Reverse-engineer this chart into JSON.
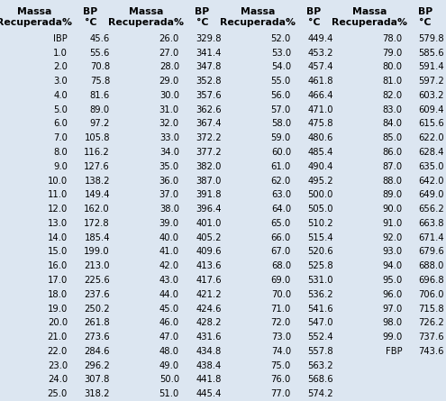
{
  "background_color": "#dce6f1",
  "rows": [
    [
      "IBP",
      "45.6"
    ],
    [
      "1.0",
      "55.6"
    ],
    [
      "2.0",
      "70.8"
    ],
    [
      "3.0",
      "75.8"
    ],
    [
      "4.0",
      "81.6"
    ],
    [
      "5.0",
      "89.0"
    ],
    [
      "6.0",
      "97.2"
    ],
    [
      "7.0",
      "105.8"
    ],
    [
      "8.0",
      "116.2"
    ],
    [
      "9.0",
      "127.6"
    ],
    [
      "10.0",
      "138.2"
    ],
    [
      "11.0",
      "149.4"
    ],
    [
      "12.0",
      "162.0"
    ],
    [
      "13.0",
      "172.8"
    ],
    [
      "14.0",
      "185.4"
    ],
    [
      "15.0",
      "199.0"
    ],
    [
      "16.0",
      "213.0"
    ],
    [
      "17.0",
      "225.6"
    ],
    [
      "18.0",
      "237.6"
    ],
    [
      "19.0",
      "250.2"
    ],
    [
      "20.0",
      "261.8"
    ],
    [
      "21.0",
      "273.6"
    ],
    [
      "22.0",
      "284.6"
    ],
    [
      "23.0",
      "296.2"
    ],
    [
      "24.0",
      "307.8"
    ],
    [
      "25.0",
      "318.2"
    ],
    [
      "26.0",
      "329.8"
    ],
    [
      "27.0",
      "341.4"
    ],
    [
      "28.0",
      "347.8"
    ],
    [
      "29.0",
      "352.8"
    ],
    [
      "30.0",
      "357.6"
    ],
    [
      "31.0",
      "362.6"
    ],
    [
      "32.0",
      "367.4"
    ],
    [
      "33.0",
      "372.2"
    ],
    [
      "34.0",
      "377.2"
    ],
    [
      "35.0",
      "382.0"
    ],
    [
      "36.0",
      "387.0"
    ],
    [
      "37.0",
      "391.8"
    ],
    [
      "38.0",
      "396.4"
    ],
    [
      "39.0",
      "401.0"
    ],
    [
      "40.0",
      "405.2"
    ],
    [
      "41.0",
      "409.6"
    ],
    [
      "42.0",
      "413.6"
    ],
    [
      "43.0",
      "417.6"
    ],
    [
      "44.0",
      "421.2"
    ],
    [
      "45.0",
      "424.6"
    ],
    [
      "46.0",
      "428.2"
    ],
    [
      "47.0",
      "431.6"
    ],
    [
      "48.0",
      "434.8"
    ],
    [
      "49.0",
      "438.4"
    ],
    [
      "50.0",
      "441.8"
    ],
    [
      "51.0",
      "445.4"
    ],
    [
      "52.0",
      "449.4"
    ],
    [
      "53.0",
      "453.2"
    ],
    [
      "54.0",
      "457.4"
    ],
    [
      "55.0",
      "461.8"
    ],
    [
      "56.0",
      "466.4"
    ],
    [
      "57.0",
      "471.0"
    ],
    [
      "58.0",
      "475.8"
    ],
    [
      "59.0",
      "480.6"
    ],
    [
      "60.0",
      "485.4"
    ],
    [
      "61.0",
      "490.4"
    ],
    [
      "62.0",
      "495.2"
    ],
    [
      "63.0",
      "500.0"
    ],
    [
      "64.0",
      "505.0"
    ],
    [
      "65.0",
      "510.2"
    ],
    [
      "66.0",
      "515.4"
    ],
    [
      "67.0",
      "520.6"
    ],
    [
      "68.0",
      "525.8"
    ],
    [
      "69.0",
      "531.0"
    ],
    [
      "70.0",
      "536.2"
    ],
    [
      "71.0",
      "541.6"
    ],
    [
      "72.0",
      "547.0"
    ],
    [
      "73.0",
      "552.4"
    ],
    [
      "74.0",
      "557.8"
    ],
    [
      "75.0",
      "563.2"
    ],
    [
      "76.0",
      "568.6"
    ],
    [
      "77.0",
      "574.2"
    ],
    [
      "78.0",
      "579.8"
    ],
    [
      "79.0",
      "585.6"
    ],
    [
      "80.0",
      "591.4"
    ],
    [
      "81.0",
      "597.2"
    ],
    [
      "82.0",
      "603.2"
    ],
    [
      "83.0",
      "609.4"
    ],
    [
      "84.0",
      "615.6"
    ],
    [
      "85.0",
      "622.0"
    ],
    [
      "86.0",
      "628.4"
    ],
    [
      "87.0",
      "635.0"
    ],
    [
      "88.0",
      "642.0"
    ],
    [
      "89.0",
      "649.0"
    ],
    [
      "90.0",
      "656.2"
    ],
    [
      "91.0",
      "663.8"
    ],
    [
      "92.0",
      "671.4"
    ],
    [
      "93.0",
      "679.6"
    ],
    [
      "94.0",
      "688.0"
    ],
    [
      "95.0",
      "696.8"
    ],
    [
      "96.0",
      "706.0"
    ],
    [
      "97.0",
      "715.8"
    ],
    [
      "98.0",
      "726.2"
    ],
    [
      "99.0",
      "737.6"
    ],
    [
      "FBP",
      "743.6"
    ]
  ],
  "n_cols": 4,
  "rows_per_col": 26,
  "font_size": 7.2,
  "header_font_size": 7.8,
  "font_family": "DejaVu Sans"
}
